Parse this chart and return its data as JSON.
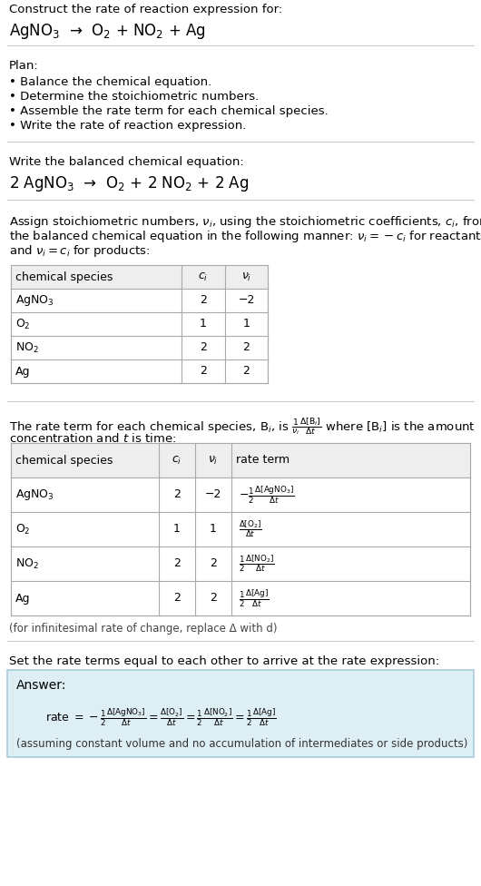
{
  "title_line1": "Construct the rate of reaction expression for:",
  "title_line2": "AgNO$_3$  →  O$_2$ + NO$_2$ + Ag",
  "plan_header": "Plan:",
  "plan_items": [
    "• Balance the chemical equation.",
    "• Determine the stoichiometric numbers.",
    "• Assemble the rate term for each chemical species.",
    "• Write the rate of reaction expression."
  ],
  "balanced_header": "Write the balanced chemical equation:",
  "balanced_eq": "2 AgNO$_3$  →  O$_2$ + 2 NO$_2$ + 2 Ag",
  "stoich_intro_lines": [
    "Assign stoichiometric numbers, $\\nu_i$, using the stoichiometric coefficients, $c_i$, from",
    "the balanced chemical equation in the following manner: $\\nu_i = -c_i$ for reactants",
    "and $\\nu_i = c_i$ for products:"
  ],
  "table1_headers": [
    "chemical species",
    "$c_i$",
    "$\\nu_i$"
  ],
  "table1_rows": [
    [
      "AgNO$_3$",
      "2",
      "−2"
    ],
    [
      "O$_2$",
      "1",
      "1"
    ],
    [
      "NO$_2$",
      "2",
      "2"
    ],
    [
      "Ag",
      "2",
      "2"
    ]
  ],
  "rate_term_intro_line1": "The rate term for each chemical species, B$_i$, is $\\frac{1}{\\nu_i}\\frac{\\Delta[\\mathrm{B}_i]}{\\Delta t}$ where [B$_i$] is the amount",
  "rate_term_intro_line2": "concentration and $t$ is time:",
  "table2_headers": [
    "chemical species",
    "$c_i$",
    "$\\nu_i$",
    "rate term"
  ],
  "table2_rows": [
    [
      "AgNO$_3$",
      "2",
      "−2",
      "$-\\frac{1}{2}\\frac{\\Delta[\\mathrm{AgNO_3}]}{\\Delta t}$"
    ],
    [
      "O$_2$",
      "1",
      "1",
      "$\\frac{\\Delta[\\mathrm{O_2}]}{\\Delta t}$"
    ],
    [
      "NO$_2$",
      "2",
      "2",
      "$\\frac{1}{2}\\frac{\\Delta[\\mathrm{NO_2}]}{\\Delta t}$"
    ],
    [
      "Ag",
      "2",
      "2",
      "$\\frac{1}{2}\\frac{\\Delta[\\mathrm{Ag}]}{\\Delta t}$"
    ]
  ],
  "infinitesimal_note": "(for infinitesimal rate of change, replace Δ with d)",
  "set_equal_text": "Set the rate terms equal to each other to arrive at the rate expression:",
  "answer_label": "Answer:",
  "rate_expression": "rate $= -\\frac{1}{2}\\frac{\\Delta[\\mathrm{AgNO_3}]}{\\Delta t} = \\frac{\\Delta[\\mathrm{O_2}]}{\\Delta t} = \\frac{1}{2}\\frac{\\Delta[\\mathrm{NO_2}]}{\\Delta t} = \\frac{1}{2}\\frac{\\Delta[\\mathrm{Ag}]}{\\Delta t}$",
  "assumption_note": "(assuming constant volume and no accumulation of intermediates or side products)",
  "bg_color": "#ffffff",
  "answer_bg": "#ddeef5",
  "answer_border": "#aaccdd",
  "separator_color": "#cccccc",
  "text_color": "#000000"
}
